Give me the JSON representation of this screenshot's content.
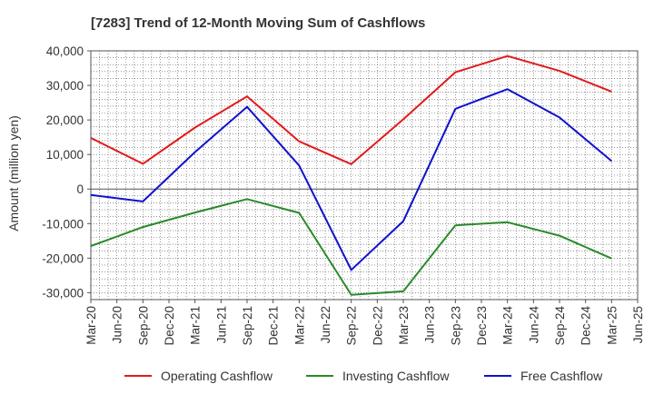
{
  "chart_data": {
    "type": "line",
    "title": "[7283]  Trend of 12-Month Moving Sum of Cashflows",
    "xlabel": "",
    "ylabel": "Amount (million yen)",
    "ylim": [
      -32000,
      40000
    ],
    "yticks": [
      40000,
      30000,
      20000,
      10000,
      0,
      -10000,
      -20000,
      -30000
    ],
    "ytick_labels": [
      "40,000",
      "30,000",
      "20,000",
      "10,000",
      "0",
      "-10,000",
      "-20,000",
      "-30,000"
    ],
    "x_ticks": [
      "Mar-20",
      "Jun-20",
      "Sep-20",
      "Dec-20",
      "Mar-21",
      "Jun-21",
      "Sep-21",
      "Dec-21",
      "Mar-22",
      "Jun-22",
      "Sep-22",
      "Dec-22",
      "Mar-23",
      "Jun-23",
      "Sep-23",
      "Dec-23",
      "Mar-24",
      "Jun-24",
      "Sep-24",
      "Dec-24",
      "Mar-25",
      "Jun-25"
    ],
    "grid": true,
    "legend_position": "bottom",
    "x": [
      "Mar-20",
      "Sep-20",
      "Mar-21",
      "Sep-21",
      "Mar-22",
      "Sep-22",
      "Mar-23",
      "Sep-23",
      "Mar-24",
      "Sep-24",
      "Mar-25"
    ],
    "series": [
      {
        "name": "Operating Cashflow",
        "color": "#e31a1c",
        "values": [
          14800,
          7300,
          17800,
          26800,
          13800,
          7200,
          20200,
          33800,
          38500,
          34200,
          28200
        ]
      },
      {
        "name": "Investing Cashflow",
        "color": "#2a8a2a",
        "values": [
          -16500,
          -11000,
          -6800,
          -2900,
          -6900,
          -30600,
          -29600,
          -10500,
          -9600,
          -13500,
          -20100
        ]
      },
      {
        "name": "Free Cashflow",
        "color": "#1111cc",
        "values": [
          -1700,
          -3600,
          10700,
          23800,
          6800,
          -23400,
          -9300,
          23200,
          28900,
          20700,
          8100
        ]
      }
    ]
  }
}
